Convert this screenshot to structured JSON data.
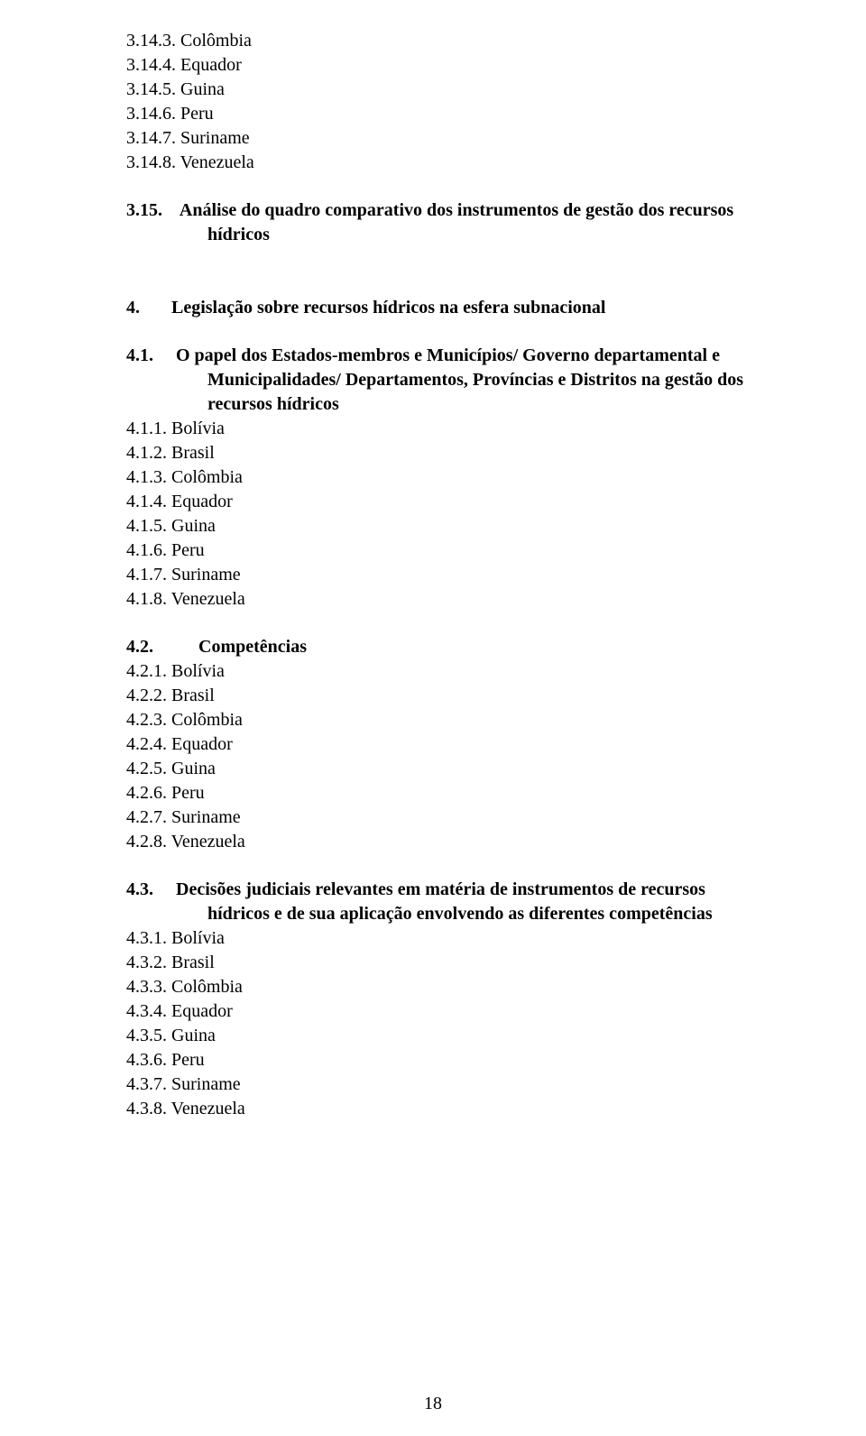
{
  "page_number": "18",
  "blocks": [
    {
      "type": "lines",
      "lines": [
        "3.14.3. Colômbia",
        "3.14.4. Equador",
        "3.14.5. Guina",
        "3.14.6. Peru",
        "3.14.7. Suriname",
        "3.14.8. Venezuela"
      ]
    },
    {
      "type": "gap",
      "size": "med"
    },
    {
      "type": "heading-hanging",
      "num": "3.15.",
      "title": "Análise do quadro comparativo dos instrumentos de gestão dos recursos hídricos"
    },
    {
      "type": "gap",
      "size": "large"
    },
    {
      "type": "heading-hanging",
      "num": "4.",
      "title": "Legislação sobre recursos hídricos na esfera subnacional"
    },
    {
      "type": "gap",
      "size": "med"
    },
    {
      "type": "heading-hanging",
      "num": "4.1.",
      "title": "O papel dos Estados-membros e Municípios/ Governo departamental e Municipalidades/ Departamentos, Províncias e Distritos na gestão dos recursos hídricos"
    },
    {
      "type": "lines",
      "lines": [
        "4.1.1. Bolívia",
        "4.1.2. Brasil",
        "4.1.3. Colômbia",
        "4.1.4. Equador",
        "4.1.5. Guina",
        "4.1.6. Peru",
        "4.1.7. Suriname",
        "4.1.8. Venezuela"
      ]
    },
    {
      "type": "gap",
      "size": "med"
    },
    {
      "type": "heading-inline",
      "num": "4.2.",
      "title": "Competências"
    },
    {
      "type": "lines",
      "lines": [
        "4.2.1. Bolívia",
        "4.2.2. Brasil",
        "4.2.3. Colômbia",
        "4.2.4. Equador",
        "4.2.5. Guina",
        "4.2.6. Peru",
        "4.2.7. Suriname",
        "4.2.8. Venezuela"
      ]
    },
    {
      "type": "gap",
      "size": "med"
    },
    {
      "type": "heading-hanging",
      "num": "4.3.",
      "title": "Decisões judiciais relevantes em matéria de instrumentos de recursos hídricos e de sua aplicação envolvendo as diferentes competências"
    },
    {
      "type": "lines",
      "lines": [
        "4.3.1. Bolívia",
        "4.3.2. Brasil",
        "4.3.3. Colômbia",
        "4.3.4. Equador",
        "4.3.5. Guina",
        "4.3.6. Peru",
        "4.3.7. Suriname",
        "4.3.8. Venezuela"
      ]
    }
  ]
}
